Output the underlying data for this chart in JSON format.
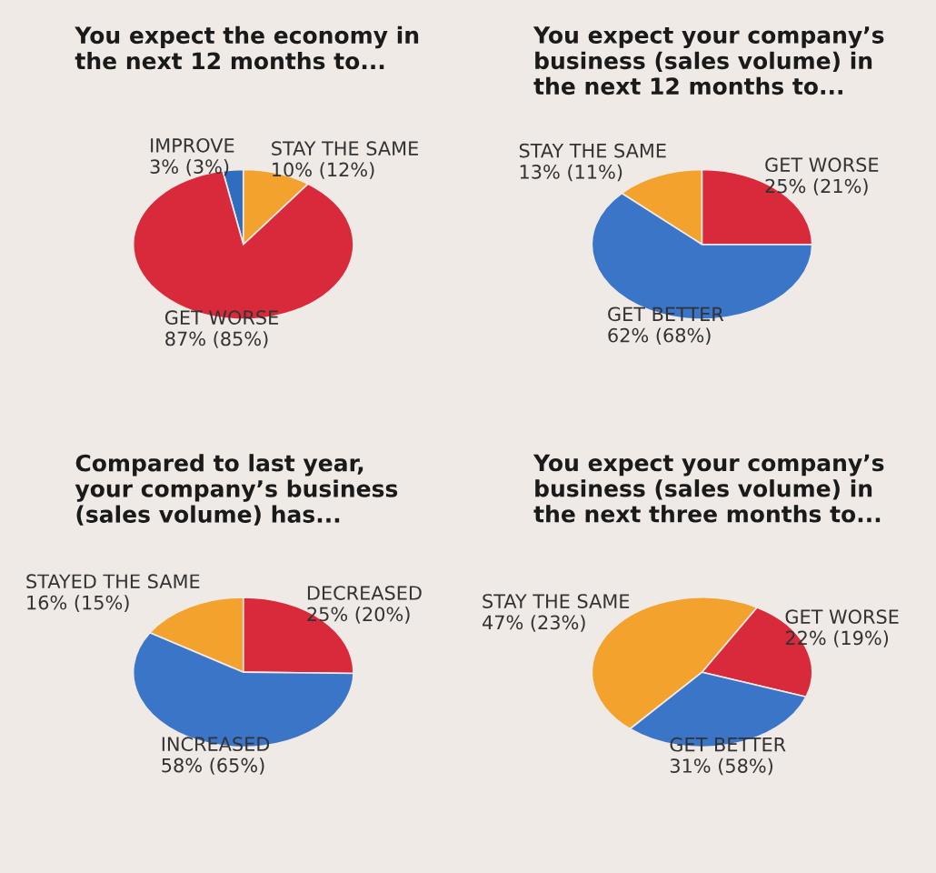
{
  "chart_data": [
    {
      "type": "pie",
      "title": "You expect the economy in\nthe next 12 months to...",
      "categories": [
        "IMPROVE",
        "STAY THE SAME",
        "GET WORSE"
      ],
      "values": [
        3,
        10,
        87
      ],
      "value_labels": [
        "3% (3%)",
        "10% (12%)",
        "87% (85%)"
      ],
      "colors": [
        "#2f6dbf",
        "#f3a22e",
        "#d92a3c"
      ]
    },
    {
      "type": "pie",
      "title": "You expect your company’s\nbusiness (sales volume) in\nthe next 12 months to...",
      "categories": [
        "STAY THE SAME",
        "GET WORSE",
        "GET BETTER"
      ],
      "values": [
        13,
        25,
        62
      ],
      "value_labels": [
        "13% (11%)",
        "25% (21%)",
        "62% (68%)"
      ],
      "colors": [
        "#f3a22e",
        "#d92a3c",
        "#3a75c8"
      ]
    },
    {
      "type": "pie",
      "title": "Compared to last year,\nyour company’s business\n(sales volume) has...",
      "categories": [
        "STAYED THE SAME",
        "DECREASED",
        "INCREASED"
      ],
      "values": [
        16,
        25,
        58
      ],
      "value_labels": [
        "16% (15%)",
        "25% (20%)",
        "58% (65%)"
      ],
      "colors": [
        "#f3a22e",
        "#d92a3c",
        "#3a75c8"
      ]
    },
    {
      "type": "pie",
      "title": "You expect your company’s\nbusiness (sales volume) in\nthe next three months to...",
      "categories": [
        "STAY THE SAME",
        "GET WORSE",
        "GET BETTER"
      ],
      "values": [
        47,
        22,
        31
      ],
      "value_labels": [
        "47% (23%)",
        "22% (19%)",
        "31% (58%)"
      ],
      "colors": [
        "#f3a22e",
        "#d92a3c",
        "#3a75c8"
      ]
    }
  ]
}
